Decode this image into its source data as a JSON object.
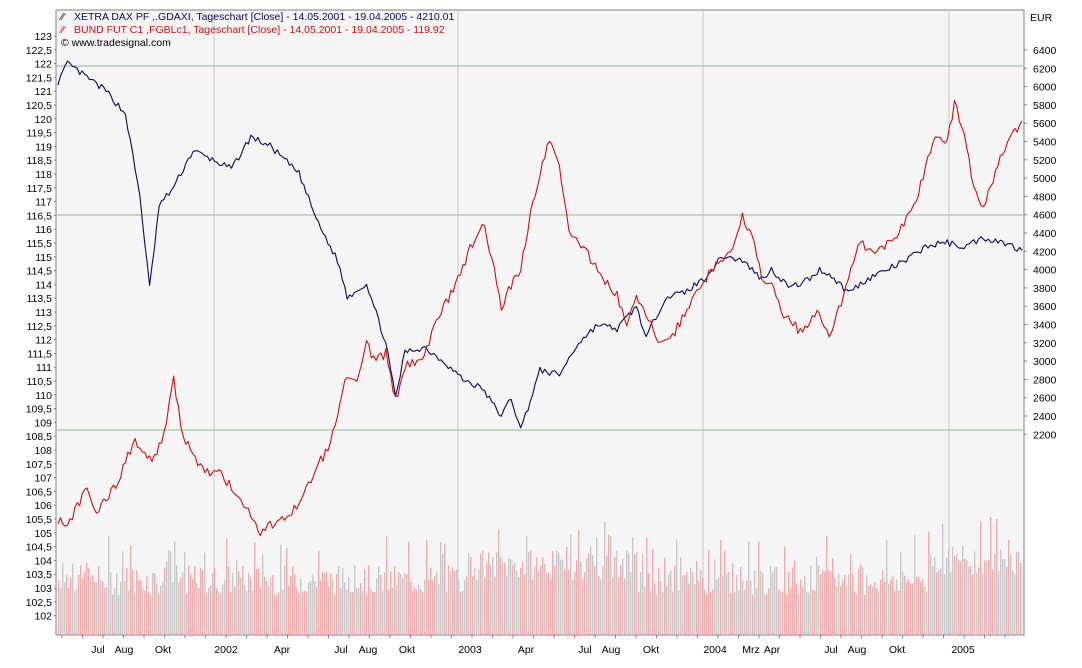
{
  "legend": {
    "series1": "XETRA DAX PF ,.GDAXI, Tageschart [Close] - 14.05.2001 - 19.04.2005 - 4210.01",
    "series2": "BUND FUT C1 ,FGBLc1, Tageschart [Close] - 14.05.2001 - 19.04.2005 - 119.92",
    "copyright": "© www.tradesignal.com"
  },
  "colors": {
    "dax": "#0a0a5a",
    "bund": "#cc1010",
    "volume": "#c0c0c0",
    "volume_red": "#f0a0a0",
    "plot_bg": "#f5f5f5",
    "grid": "#c8c8c8",
    "highlight_grid": "#8fbc8f"
  },
  "chart_data": {
    "type": "line",
    "x_tick_labels": [
      "Jul",
      "Aug",
      "Okt",
      "2002",
      "Apr",
      "Jul",
      "Aug",
      "Okt",
      "2003",
      "Apr",
      "Jul",
      "Aug",
      "Okt",
      "2004",
      "Mrz",
      "Apr",
      "Jul",
      "Aug",
      "Okt",
      "2005"
    ],
    "right_axis": {
      "unit": "EUR",
      "ticks": [
        "6400",
        "6200",
        "6000",
        "5800",
        "5600",
        "5400",
        "5200",
        "5000",
        "4800",
        "4600",
        "4400",
        "4200",
        "4000",
        "3800",
        "3600",
        "3400",
        "3200",
        "3000",
        "2800",
        "2600",
        "2400",
        "2200"
      ]
    },
    "left_axis": {
      "ticks": [
        "123",
        "122,5",
        "122",
        "121,5",
        "121",
        "120,5",
        "120",
        "119,5",
        "119",
        "118,5",
        "118",
        "117,5",
        "117",
        "116,5",
        "116",
        "115,5",
        "115",
        "114,5",
        "114",
        "113,5",
        "113",
        "112,5",
        "112",
        "111,5",
        "111",
        "110,5",
        "110",
        "109,5",
        "109",
        "108,5",
        "108",
        "107,5",
        "107",
        "106,5",
        "106",
        "105,5",
        "105",
        "104,5",
        "104",
        "103,5",
        "103",
        "102,5",
        "102"
      ]
    },
    "series": [
      {
        "name": "XETRA DAX PF",
        "axis": "right",
        "points": [
          [
            0.0,
            6050
          ],
          [
            0.01,
            6250
          ],
          [
            0.03,
            6100
          ],
          [
            0.05,
            5950
          ],
          [
            0.07,
            5700
          ],
          [
            0.085,
            4800
          ],
          [
            0.095,
            3800
          ],
          [
            0.105,
            4700
          ],
          [
            0.12,
            4900
          ],
          [
            0.14,
            5300
          ],
          [
            0.16,
            5200
          ],
          [
            0.18,
            5100
          ],
          [
            0.2,
            5450
          ],
          [
            0.22,
            5350
          ],
          [
            0.25,
            5050
          ],
          [
            0.27,
            4500
          ],
          [
            0.29,
            4100
          ],
          [
            0.3,
            3700
          ],
          [
            0.32,
            3850
          ],
          [
            0.34,
            3200
          ],
          [
            0.35,
            2600
          ],
          [
            0.36,
            3100
          ],
          [
            0.38,
            3150
          ],
          [
            0.4,
            3000
          ],
          [
            0.42,
            2800
          ],
          [
            0.44,
            2700
          ],
          [
            0.46,
            2400
          ],
          [
            0.47,
            2600
          ],
          [
            0.48,
            2250
          ],
          [
            0.5,
            2900
          ],
          [
            0.52,
            2850
          ],
          [
            0.54,
            3200
          ],
          [
            0.56,
            3400
          ],
          [
            0.58,
            3350
          ],
          [
            0.6,
            3600
          ],
          [
            0.61,
            3250
          ],
          [
            0.63,
            3700
          ],
          [
            0.65,
            3750
          ],
          [
            0.67,
            3900
          ],
          [
            0.69,
            4150
          ],
          [
            0.71,
            4100
          ],
          [
            0.72,
            4000
          ],
          [
            0.73,
            3900
          ],
          [
            0.74,
            4000
          ],
          [
            0.76,
            3800
          ],
          [
            0.78,
            3900
          ],
          [
            0.79,
            4000
          ],
          [
            0.8,
            3950
          ],
          [
            0.82,
            3750
          ],
          [
            0.84,
            3900
          ],
          [
            0.86,
            4000
          ],
          [
            0.88,
            4100
          ],
          [
            0.9,
            4250
          ],
          [
            0.92,
            4300
          ],
          [
            0.94,
            4250
          ],
          [
            0.96,
            4350
          ],
          [
            0.98,
            4300
          ],
          [
            1.0,
            4210
          ]
        ]
      },
      {
        "name": "BUND FUT C1",
        "axis": "left",
        "points": [
          [
            0.0,
            105.5
          ],
          [
            0.01,
            105.3
          ],
          [
            0.03,
            106.6
          ],
          [
            0.04,
            105.7
          ],
          [
            0.06,
            106.7
          ],
          [
            0.07,
            107.6
          ],
          [
            0.08,
            108.4
          ],
          [
            0.09,
            107.8
          ],
          [
            0.1,
            107.7
          ],
          [
            0.11,
            108.6
          ],
          [
            0.12,
            110.5
          ],
          [
            0.13,
            108.5
          ],
          [
            0.15,
            107.3
          ],
          [
            0.17,
            107.1
          ],
          [
            0.19,
            106.2
          ],
          [
            0.21,
            105.0
          ],
          [
            0.23,
            105.5
          ],
          [
            0.25,
            106.0
          ],
          [
            0.27,
            107.5
          ],
          [
            0.28,
            108.0
          ],
          [
            0.3,
            110.8
          ],
          [
            0.31,
            110.6
          ],
          [
            0.32,
            111.8
          ],
          [
            0.33,
            111.2
          ],
          [
            0.34,
            111.5
          ],
          [
            0.35,
            109.8
          ],
          [
            0.36,
            111.0
          ],
          [
            0.38,
            111.4
          ],
          [
            0.39,
            112.5
          ],
          [
            0.41,
            113.8
          ],
          [
            0.43,
            115.5
          ],
          [
            0.44,
            116.3
          ],
          [
            0.45,
            115.0
          ],
          [
            0.46,
            113.0
          ],
          [
            0.47,
            114.0
          ],
          [
            0.48,
            114.5
          ],
          [
            0.49,
            116.5
          ],
          [
            0.5,
            118.0
          ],
          [
            0.51,
            119.2
          ],
          [
            0.52,
            118.3
          ],
          [
            0.53,
            116.0
          ],
          [
            0.54,
            115.6
          ],
          [
            0.56,
            114.5
          ],
          [
            0.58,
            113.6
          ],
          [
            0.59,
            112.5
          ],
          [
            0.6,
            113.5
          ],
          [
            0.61,
            113.0
          ],
          [
            0.62,
            112.0
          ],
          [
            0.64,
            112.3
          ],
          [
            0.66,
            113.6
          ],
          [
            0.68,
            114.6
          ],
          [
            0.7,
            115.3
          ],
          [
            0.71,
            116.5
          ],
          [
            0.72,
            115.8
          ],
          [
            0.73,
            114.2
          ],
          [
            0.74,
            114.0
          ],
          [
            0.75,
            113.0
          ],
          [
            0.77,
            112.3
          ],
          [
            0.79,
            113.0
          ],
          [
            0.8,
            112.0
          ],
          [
            0.82,
            114.1
          ],
          [
            0.83,
            115.5
          ],
          [
            0.85,
            115.2
          ],
          [
            0.87,
            115.8
          ],
          [
            0.89,
            117.0
          ],
          [
            0.9,
            118.3
          ],
          [
            0.91,
            119.5
          ],
          [
            0.92,
            119.0
          ],
          [
            0.93,
            120.5
          ],
          [
            0.94,
            119.6
          ],
          [
            0.95,
            117.5
          ],
          [
            0.96,
            116.8
          ],
          [
            0.97,
            117.8
          ],
          [
            0.98,
            118.8
          ],
          [
            1.0,
            119.92
          ]
        ]
      }
    ]
  }
}
